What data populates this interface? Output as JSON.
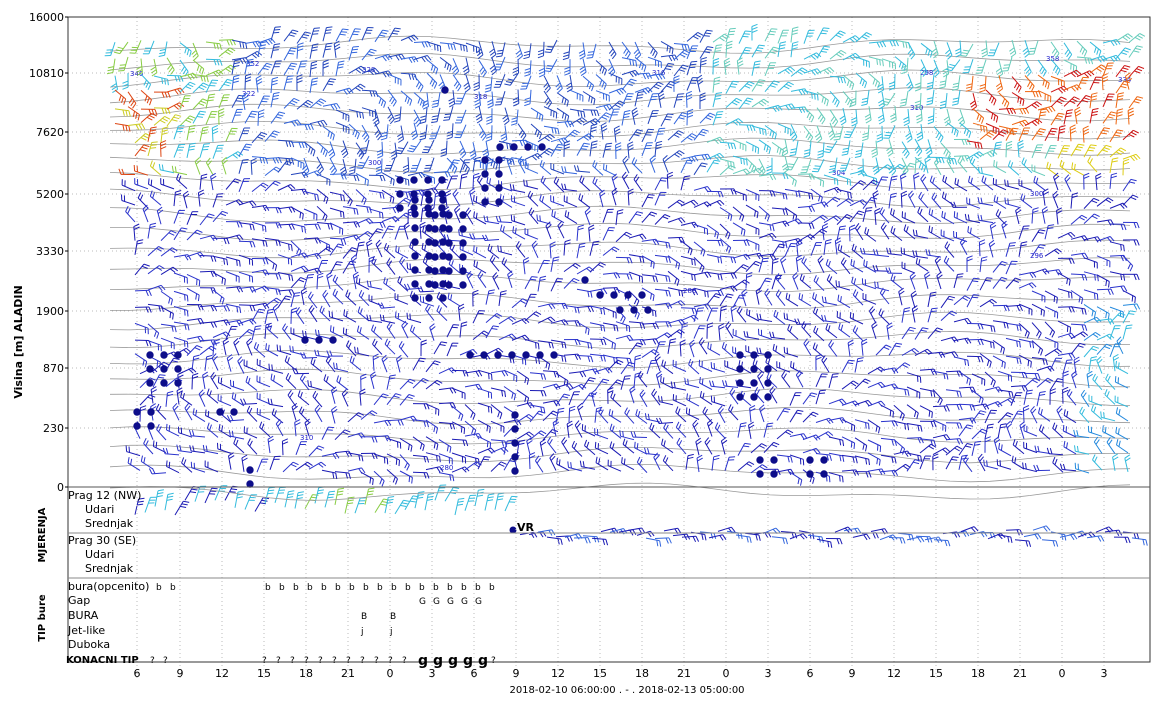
{
  "chart_data": {
    "type": "wind-barb time-height cross-section",
    "ylabel": "Visina [m] ALADIN",
    "xlabel": "2018-02-10 06:00:00 . - . 2018-02-13 05:00:00",
    "y_ticks": [
      "16000",
      "10810",
      "7620",
      "5200",
      "3330",
      "1900",
      "870",
      "230",
      "0"
    ],
    "x_ticks": [
      "6",
      "9",
      "12",
      "15",
      "18",
      "21",
      "0",
      "3",
      "6",
      "9",
      "12",
      "15",
      "18",
      "21",
      "0",
      "3",
      "6",
      "9",
      "12",
      "15",
      "18",
      "21",
      "0",
      "3"
    ],
    "contour_labels": [
      "346",
      "352",
      "322",
      "328",
      "318",
      "310",
      "304",
      "300",
      "296",
      "288",
      "280",
      "358",
      "334",
      "316",
      "298",
      "310",
      "300"
    ],
    "colors": {
      "barb_low": "#1a1ab4",
      "barb_mid": "#33bbdd",
      "barb_high": "#cc1111",
      "precip_dot": "#0d0d8a",
      "grid": "#bbbbbb"
    },
    "measurements": {
      "section_label": "MJERENJA",
      "rows": [
        "Prag 12 (NW)",
        "Udari",
        "Srednjak",
        "Prag 30 (SE)",
        "Udari",
        "Srednjak"
      ],
      "marker": "VR"
    },
    "bura_type": {
      "section_label": "TIP bure",
      "rows": [
        {
          "label": "bura(opcenito)",
          "marks": [
            "b",
            "b",
            "",
            "",
            "",
            "b",
            "b",
            "b",
            "b",
            "b",
            "b",
            "b",
            "b",
            "b",
            "b",
            "b",
            "b",
            "b",
            "b",
            "b",
            "b",
            "b"
          ]
        },
        {
          "label": "Gap",
          "marks": [
            "G",
            "G",
            "G",
            "G",
            "G"
          ]
        },
        {
          "label": "BURA",
          "marks": [
            "B",
            "B"
          ]
        },
        {
          "label": "Jet-like",
          "marks": [
            "j",
            "j"
          ]
        },
        {
          "label": "Duboka",
          "marks": []
        }
      ],
      "final": {
        "label": "KONACNI TIP",
        "small": "?",
        "big": "g"
      }
    }
  }
}
